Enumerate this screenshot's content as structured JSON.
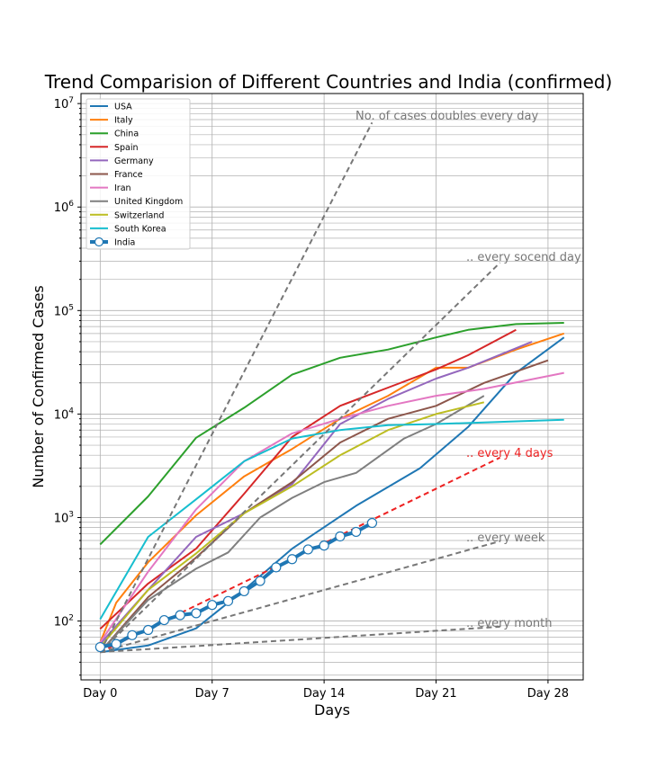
{
  "chart_data": {
    "type": "line",
    "title": "Trend Comparision of Different Countries and India (confirmed)",
    "xlabel": "Days",
    "ylabel": "Number of Confirmed Cases",
    "yscale": "log",
    "xlim": [
      -1.2,
      30.2
    ],
    "ylim": [
      27,
      12500000
    ],
    "grid": true,
    "legend": "top-left",
    "x_ticks": [
      {
        "value": 0,
        "label": "Day 0"
      },
      {
        "value": 7,
        "label": "Day 7"
      },
      {
        "value": 14,
        "label": "Day 14"
      },
      {
        "value": 21,
        "label": "Day 21"
      },
      {
        "value": 28,
        "label": "Day 28"
      }
    ],
    "y_ticks": [
      {
        "value": 100,
        "base": "10",
        "exp": "2"
      },
      {
        "value": 1000,
        "base": "10",
        "exp": "3"
      },
      {
        "value": 10000,
        "base": "10",
        "exp": "4"
      },
      {
        "value": 100000,
        "base": "10",
        "exp": "5"
      },
      {
        "value": 1000000,
        "base": "10",
        "exp": "6"
      },
      {
        "value": 10000000,
        "base": "10",
        "exp": "7"
      }
    ],
    "series": [
      {
        "name": "USA",
        "color": "#1f77b4",
        "x": [
          0,
          3,
          6,
          9,
          12,
          16,
          20,
          23,
          26,
          29
        ],
        "values": [
          50,
          58,
          85,
          200,
          500,
          1300,
          3000,
          7500,
          25000,
          55000
        ]
      },
      {
        "name": "Italy",
        "color": "#ff7f0e",
        "x": [
          0,
          1,
          3,
          6,
          9,
          12,
          15,
          18,
          21,
          23,
          26,
          29
        ],
        "values": [
          62,
          150,
          370,
          1050,
          2500,
          4600,
          9000,
          15000,
          28000,
          28000,
          42000,
          60000
        ]
      },
      {
        "name": "China",
        "color": "#2ca02c",
        "x": [
          0,
          3,
          6,
          9,
          12,
          15,
          18,
          21,
          23,
          26,
          29
        ],
        "values": [
          550,
          1600,
          5900,
          11500,
          24000,
          35000,
          42000,
          55000,
          65000,
          74000,
          76000
        ]
      },
      {
        "name": "Spain",
        "color": "#d62728",
        "x": [
          0,
          3,
          6,
          9,
          12,
          15,
          18,
          21,
          23,
          26
        ],
        "values": [
          84,
          230,
          500,
          1700,
          6000,
          12000,
          18000,
          27000,
          37000,
          65000
        ]
      },
      {
        "name": "Germany",
        "color": "#9467bd",
        "x": [
          0,
          3,
          6,
          9,
          12,
          15,
          18,
          21,
          23,
          27
        ],
        "values": [
          60,
          200,
          650,
          1100,
          2100,
          8000,
          14000,
          22000,
          28000,
          50000
        ]
      },
      {
        "name": "France",
        "color": "#8c564b",
        "x": [
          0,
          3,
          6,
          9,
          12,
          15,
          18,
          21,
          24,
          28
        ],
        "values": [
          50,
          170,
          410,
          1100,
          2200,
          5300,
          9000,
          12000,
          20000,
          33000
        ]
      },
      {
        "name": "Iran",
        "color": "#e377c2",
        "x": [
          0,
          3,
          6,
          9,
          12,
          15,
          18,
          21,
          24,
          29
        ],
        "values": [
          62,
          300,
          1200,
          3500,
          6500,
          9000,
          12000,
          15000,
          17500,
          25000
        ]
      },
      {
        "name": "United Kingdom",
        "color": "#7f7f7f",
        "x": [
          0,
          3,
          6,
          8,
          10,
          12,
          14,
          16,
          19,
          21,
          24
        ],
        "values": [
          50,
          160,
          320,
          460,
          1000,
          1550,
          2200,
          2700,
          5800,
          8000,
          15000
        ]
      },
      {
        "name": "Switzerland",
        "color": "#bcbd22",
        "x": [
          0,
          3,
          6,
          9,
          12,
          15,
          18,
          21,
          24
        ],
        "values": [
          56,
          200,
          450,
          1100,
          2000,
          4000,
          7000,
          10000,
          13000
        ]
      },
      {
        "name": "South Korea",
        "color": "#17becf",
        "x": [
          0,
          3,
          6,
          9,
          12,
          15,
          18,
          21,
          24,
          29
        ],
        "values": [
          104,
          650,
          1500,
          3500,
          5800,
          7000,
          7800,
          8000,
          8300,
          8800
        ]
      },
      {
        "name": "India",
        "color": "#1f77b4",
        "x": [
          0,
          1,
          2,
          3,
          4,
          5,
          6,
          7,
          8,
          9,
          10,
          11,
          12,
          13,
          14,
          15,
          16,
          17
        ],
        "values": [
          56,
          60,
          73,
          82,
          102,
          114,
          119,
          143,
          156,
          194,
          244,
          330,
          396,
          492,
          536,
          657,
          727,
          887
        ]
      }
    ],
    "reference_lines": [
      {
        "label": "No. of cases doubles every day",
        "x": [
          0,
          17
        ],
        "values": [
          50,
          6553600
        ]
      },
      {
        "label": ".. every socend day",
        "x": [
          0,
          25
        ],
        "values": [
          50,
          290000
        ]
      },
      {
        "label": ".. every 4 days",
        "x": [
          0,
          25
        ],
        "values": [
          50,
          3800
        ]
      },
      {
        "label": ".. every week",
        "x": [
          0,
          25
        ],
        "values": [
          50,
          590
        ]
      },
      {
        "label": ".. every month",
        "x": [
          0,
          25
        ],
        "values": [
          50,
          88
        ]
      }
    ]
  }
}
